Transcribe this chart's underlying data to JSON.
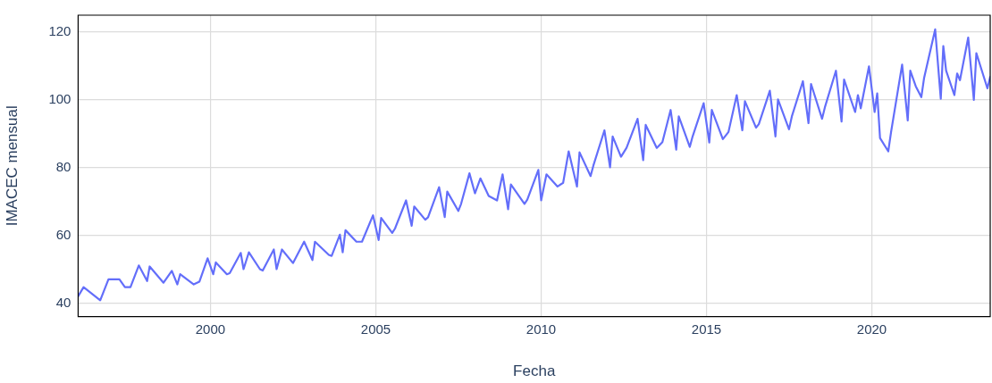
{
  "chart_data": {
    "type": "line",
    "xlabel": "Fecha",
    "ylabel": "IMACEC mensual",
    "color": "#636efa",
    "grid": true,
    "xlim": [
      "1996-01",
      "2023-08"
    ],
    "xticks": [
      "2000",
      "2005",
      "2010",
      "2015",
      "2020"
    ],
    "ylim": [
      36,
      125
    ],
    "yticks": [
      40,
      60,
      80,
      100,
      120
    ],
    "x": [
      "1996-01",
      "1996-03",
      "1996-09",
      "1996-12",
      "1997-04",
      "1997-06",
      "1997-08",
      "1997-11",
      "1998-02",
      "1998-03",
      "1998-08",
      "1998-11",
      "1999-01",
      "1999-02",
      "1999-07",
      "1999-09",
      "1999-12",
      "2000-02",
      "2000-03",
      "2000-07",
      "2000-08",
      "2000-12",
      "2001-01",
      "2001-03",
      "2001-07",
      "2001-08",
      "2001-12",
      "2002-01",
      "2002-03",
      "2002-07",
      "2002-11",
      "2003-02",
      "2003-03",
      "2003-08",
      "2003-09",
      "2003-12",
      "2004-01",
      "2004-02",
      "2004-06",
      "2004-08",
      "2004-12",
      "2005-02",
      "2005-03",
      "2005-07",
      "2005-08",
      "2005-12",
      "2006-02",
      "2006-03",
      "2006-07",
      "2006-08",
      "2006-12",
      "2007-02",
      "2007-03",
      "2007-07",
      "2007-08",
      "2007-11",
      "2008-01",
      "2008-03",
      "2008-06",
      "2008-09",
      "2008-11",
      "2009-01",
      "2009-02",
      "2009-07",
      "2009-08",
      "2009-12",
      "2010-01",
      "2010-03",
      "2010-07",
      "2010-09",
      "2010-11",
      "2011-02",
      "2011-03",
      "2011-07",
      "2011-08",
      "2011-12",
      "2012-02",
      "2012-03",
      "2012-06",
      "2012-08",
      "2012-12",
      "2013-02",
      "2013-03",
      "2013-07",
      "2013-09",
      "2013-12",
      "2014-02",
      "2014-03",
      "2014-07",
      "2014-08",
      "2014-12",
      "2015-02",
      "2015-03",
      "2015-07",
      "2015-09",
      "2015-12",
      "2016-02",
      "2016-03",
      "2016-07",
      "2016-08",
      "2016-12",
      "2017-02",
      "2017-03",
      "2017-07",
      "2017-08",
      "2017-12",
      "2018-02",
      "2018-03",
      "2018-07",
      "2018-08",
      "2018-12",
      "2019-02",
      "2019-03",
      "2019-07",
      "2019-08",
      "2019-09",
      "2019-12",
      "2020-02",
      "2020-03",
      "2020-04",
      "2020-07",
      "2020-08",
      "2020-12",
      "2021-02",
      "2021-03",
      "2021-05",
      "2021-07",
      "2021-08",
      "2021-12",
      "2022-02",
      "2022-03",
      "2022-04",
      "2022-07",
      "2022-08",
      "2022-09",
      "2022-12",
      "2023-02",
      "2023-03",
      "2023-05",
      "2023-07",
      "2023-08"
    ],
    "values": [
      42,
      44.7,
      40.8,
      47,
      47,
      44.7,
      44.7,
      51.1,
      46.5,
      50.8,
      46,
      49.5,
      45.5,
      48.5,
      45.5,
      46.3,
      53.2,
      48.5,
      52,
      48.5,
      48.8,
      54.8,
      50,
      55,
      50,
      49.6,
      55.8,
      50,
      55.8,
      51.8,
      58.1,
      52.7,
      58.1,
      54.2,
      53.9,
      60.2,
      55,
      61.5,
      58.1,
      58.1,
      65.9,
      58.6,
      65.1,
      60.7,
      62,
      70.3,
      62.8,
      68.5,
      64.6,
      65.3,
      74.2,
      65.4,
      72.9,
      67.2,
      69.3,
      78.3,
      72.4,
      76.8,
      71.6,
      70.3,
      78,
      67.7,
      75,
      69.3,
      70.5,
      79.3,
      70.3,
      78,
      74.4,
      75.5,
      84.8,
      74.4,
      84.5,
      77.5,
      80.6,
      91,
      80.1,
      89.2,
      83.2,
      85.8,
      94.4,
      82.2,
      92.6,
      85.8,
      87.5,
      97,
      85.3,
      95.1,
      86.1,
      89.2,
      99,
      87.4,
      97,
      88.4,
      90.5,
      101.4,
      91,
      99.6,
      91.8,
      92.8,
      102.7,
      89.2,
      100.1,
      91.3,
      95.1,
      105.5,
      93.1,
      104.7,
      94.4,
      97.8,
      108.6,
      93.6,
      106,
      96.4,
      101.4,
      97.5,
      109.9,
      96.4,
      101.9,
      88.7,
      84.8,
      90.5,
      110.4,
      93.9,
      108.6,
      104,
      100.8,
      106.5,
      120.8,
      100.3,
      115.9,
      108.6,
      101.4,
      107.8,
      105.8,
      118.4,
      100,
      113.8,
      108.6,
      103.4,
      106.8
    ]
  }
}
